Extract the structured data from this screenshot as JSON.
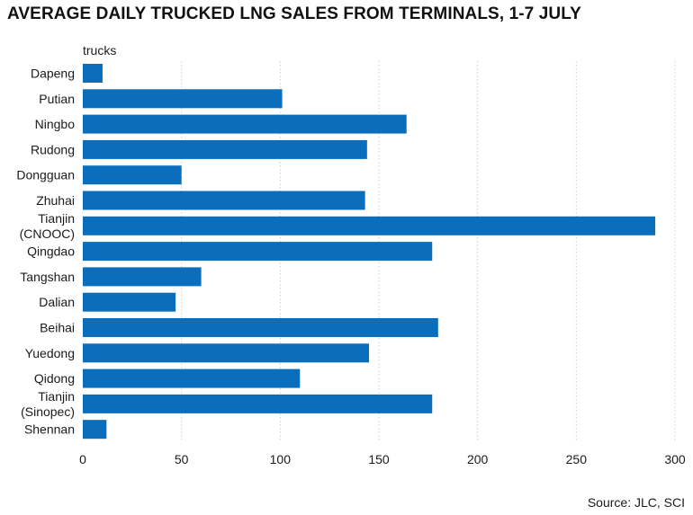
{
  "title": "AVERAGE DAILY TRUCKED LNG SALES FROM TERMINALS, 1-7 JULY",
  "source": "Source: JLC, SCI",
  "chart_data": {
    "type": "bar",
    "orientation": "horizontal",
    "title": "AVERAGE DAILY TRUCKED LNG SALES FROM TERMINALS, 1-7 JULY",
    "unit_label": "trucks",
    "categories": [
      "Dapeng",
      "Putian",
      "Ningbo",
      "Rudong",
      "Dongguan",
      "Zhuhai",
      "Tianjin (CNOOC)",
      "Qingdao",
      "Tangshan",
      "Dalian",
      "Beihai",
      "Yuedong",
      "Qidong",
      "Tianjin (Sinopec)",
      "Shennan"
    ],
    "category_lines": [
      [
        "Dapeng"
      ],
      [
        "Putian"
      ],
      [
        "Ningbo"
      ],
      [
        "Rudong"
      ],
      [
        "Dongguan"
      ],
      [
        "Zhuhai"
      ],
      [
        "Tianjin",
        "(CNOOC)"
      ],
      [
        "Qingdao"
      ],
      [
        "Tangshan"
      ],
      [
        "Dalian"
      ],
      [
        "Beihai"
      ],
      [
        "Yuedong"
      ],
      [
        "Qidong"
      ],
      [
        "Tianjin",
        "(Sinopec)"
      ],
      [
        "Shennan"
      ]
    ],
    "values": [
      10,
      101,
      164,
      144,
      50,
      143,
      290,
      177,
      60,
      47,
      180,
      145,
      110,
      177,
      12
    ],
    "xlim": [
      0,
      300
    ],
    "xticks": [
      0,
      50,
      100,
      150,
      200,
      250,
      300
    ],
    "grid": "vertical dotted",
    "legend": "none",
    "bar_color": "#0a6ebd",
    "grid_color": "#cfcfcf"
  }
}
